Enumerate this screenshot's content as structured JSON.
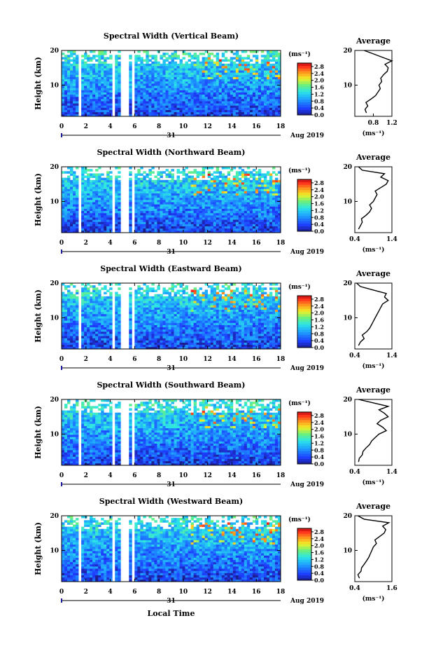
{
  "figure": {
    "xlabel": "Local Time",
    "date_label": "Aug 2019",
    "day_label": "31",
    "colorbar_unit": "(ms⁻¹)",
    "avg_unit": "(ms⁻¹)",
    "avg_title": "Average"
  },
  "chart_data": [
    {
      "type": "heatmap",
      "title": "Spectral Width (Vertical Beam)",
      "ylabel": "Height (km)",
      "xlim": [
        0,
        18
      ],
      "ylim": [
        1,
        20
      ],
      "xticks": [
        0,
        2,
        4,
        6,
        8,
        10,
        12,
        14,
        16,
        18
      ],
      "yticks": [
        10,
        20
      ],
      "colorbar": {
        "ticks": [
          0.0,
          0.4,
          0.8,
          1.2,
          1.6,
          2.0,
          2.4,
          2.8
        ],
        "range": [
          0,
          3.0
        ]
      },
      "data_gaps_hours": [
        [
          1.4,
          1.6
        ],
        [
          4.1,
          4.3
        ],
        [
          4.9,
          5.5
        ],
        [
          5.8,
          6.0
        ]
      ],
      "average_profile": {
        "title": "Average",
        "xlim": [
          0.4,
          1.2
        ],
        "xticks": [
          0.8,
          1.2
        ],
        "ylim": [
          1,
          20
        ],
        "heights": [
          2,
          3,
          4,
          5,
          6,
          7,
          8,
          9,
          10,
          11,
          12,
          13,
          14,
          15,
          16,
          17,
          18,
          19,
          20
        ],
        "values": [
          0.65,
          0.62,
          0.68,
          0.64,
          0.75,
          0.85,
          0.9,
          0.95,
          0.92,
          0.98,
          0.96,
          1.02,
          1.1,
          1.12,
          1.05,
          1.2,
          1.0,
          0.8,
          0.6
        ]
      }
    },
    {
      "type": "heatmap",
      "title": "Spectral Width (Northward Beam)",
      "ylabel": "Height (km)",
      "xlim": [
        0,
        18
      ],
      "ylim": [
        1,
        20
      ],
      "xticks": [
        0,
        2,
        4,
        6,
        8,
        10,
        12,
        14,
        16,
        18
      ],
      "yticks": [
        10,
        20
      ],
      "colorbar": {
        "ticks": [
          0.0,
          0.4,
          0.8,
          1.2,
          1.6,
          2.0,
          2.4,
          2.8
        ],
        "range": [
          0,
          3.0
        ]
      },
      "data_gaps_hours": [
        [
          1.4,
          1.6
        ],
        [
          4.1,
          4.3
        ],
        [
          4.9,
          5.5
        ],
        [
          5.8,
          6.0
        ]
      ],
      "average_profile": {
        "title": "Average",
        "xlim": [
          0.4,
          1.4
        ],
        "xticks": [
          0.4,
          1.4
        ],
        "ylim": [
          1,
          20
        ],
        "heights": [
          2,
          3,
          4,
          5,
          6,
          7,
          8,
          9,
          10,
          11,
          12,
          13,
          14,
          15,
          16,
          17,
          18,
          19,
          20
        ],
        "values": [
          0.5,
          0.55,
          0.6,
          0.58,
          0.7,
          0.8,
          0.85,
          0.8,
          0.9,
          0.95,
          1.0,
          0.95,
          1.1,
          1.25,
          1.3,
          1.1,
          1.2,
          0.6,
          0.5
        ]
      }
    },
    {
      "type": "heatmap",
      "title": "Spectral Width (Eastward Beam)",
      "ylabel": "Height (km)",
      "xlim": [
        0,
        18
      ],
      "ylim": [
        1,
        20
      ],
      "xticks": [
        0,
        2,
        4,
        6,
        8,
        10,
        12,
        14,
        16,
        18
      ],
      "yticks": [
        10,
        20
      ],
      "colorbar": {
        "ticks": [
          0.0,
          0.4,
          0.8,
          1.2,
          1.6,
          2.0,
          2.4,
          2.8
        ],
        "range": [
          0,
          3.0
        ]
      },
      "data_gaps_hours": [
        [
          1.4,
          1.6
        ],
        [
          4.1,
          4.3
        ],
        [
          4.9,
          5.5
        ],
        [
          5.8,
          6.0
        ]
      ],
      "average_profile": {
        "title": "Average",
        "xlim": [
          0.4,
          1.4
        ],
        "xticks": [
          0.4,
          1.4
        ],
        "ylim": [
          1,
          20
        ],
        "heights": [
          2,
          3,
          4,
          5,
          6,
          7,
          8,
          9,
          10,
          11,
          12,
          13,
          14,
          15,
          16,
          17,
          18,
          19,
          20
        ],
        "values": [
          0.5,
          0.55,
          0.65,
          0.6,
          0.72,
          0.8,
          0.85,
          0.9,
          0.95,
          1.0,
          1.05,
          1.1,
          1.15,
          1.3,
          1.2,
          1.25,
          0.9,
          0.55,
          0.45
        ]
      }
    },
    {
      "type": "heatmap",
      "title": "Spectral Width (Southward Beam)",
      "ylabel": "Height (km)",
      "xlim": [
        0,
        18
      ],
      "ylim": [
        1,
        20
      ],
      "xticks": [
        0,
        2,
        4,
        6,
        8,
        10,
        12,
        14,
        16,
        18
      ],
      "yticks": [
        10,
        20
      ],
      "colorbar": {
        "ticks": [
          0.0,
          0.4,
          0.8,
          1.2,
          1.6,
          2.0,
          2.4,
          2.8
        ],
        "range": [
          0,
          3.0
        ]
      },
      "data_gaps_hours": [
        [
          1.4,
          1.6
        ],
        [
          4.1,
          4.3
        ],
        [
          4.9,
          5.5
        ],
        [
          5.8,
          6.0
        ]
      ],
      "average_profile": {
        "title": "Average",
        "xlim": [
          0.4,
          1.4
        ],
        "xticks": [
          0.4,
          1.4
        ],
        "ylim": [
          1,
          20
        ],
        "heights": [
          2,
          3,
          4,
          5,
          6,
          7,
          8,
          9,
          10,
          11,
          12,
          13,
          14,
          15,
          16,
          17,
          18,
          19,
          20
        ],
        "values": [
          0.5,
          0.52,
          0.6,
          0.62,
          0.7,
          0.8,
          0.85,
          0.95,
          1.05,
          1.25,
          1.15,
          1.0,
          1.1,
          1.3,
          1.2,
          1.05,
          1.3,
          0.9,
          0.5
        ]
      }
    },
    {
      "type": "heatmap",
      "title": "Spectral Width (Westward Beam)",
      "ylabel": "Height (km)",
      "xlim": [
        0,
        18
      ],
      "ylim": [
        1,
        20
      ],
      "xticks": [
        0,
        2,
        4,
        6,
        8,
        10,
        12,
        14,
        16,
        18
      ],
      "yticks": [
        10,
        20
      ],
      "colorbar": {
        "ticks": [
          0.0,
          0.4,
          0.8,
          1.2,
          1.6,
          2.0,
          2.4,
          2.8
        ],
        "range": [
          0,
          3.0
        ]
      },
      "data_gaps_hours": [
        [
          1.4,
          1.6
        ],
        [
          4.1,
          4.3
        ],
        [
          4.9,
          5.5
        ],
        [
          5.8,
          6.0
        ]
      ],
      "average_profile": {
        "title": "Average",
        "xlim": [
          0.4,
          1.6
        ],
        "xticks": [
          0.4,
          1.6
        ],
        "ylim": [
          1,
          20
        ],
        "heights": [
          2,
          3,
          4,
          5,
          6,
          7,
          8,
          9,
          10,
          11,
          12,
          13,
          14,
          15,
          16,
          17,
          18,
          19,
          20
        ],
        "values": [
          0.55,
          0.5,
          0.6,
          0.62,
          0.7,
          0.78,
          0.85,
          0.9,
          0.95,
          1.0,
          1.1,
          1.05,
          1.2,
          1.35,
          1.4,
          1.3,
          1.5,
          0.7,
          0.5
        ]
      }
    }
  ]
}
